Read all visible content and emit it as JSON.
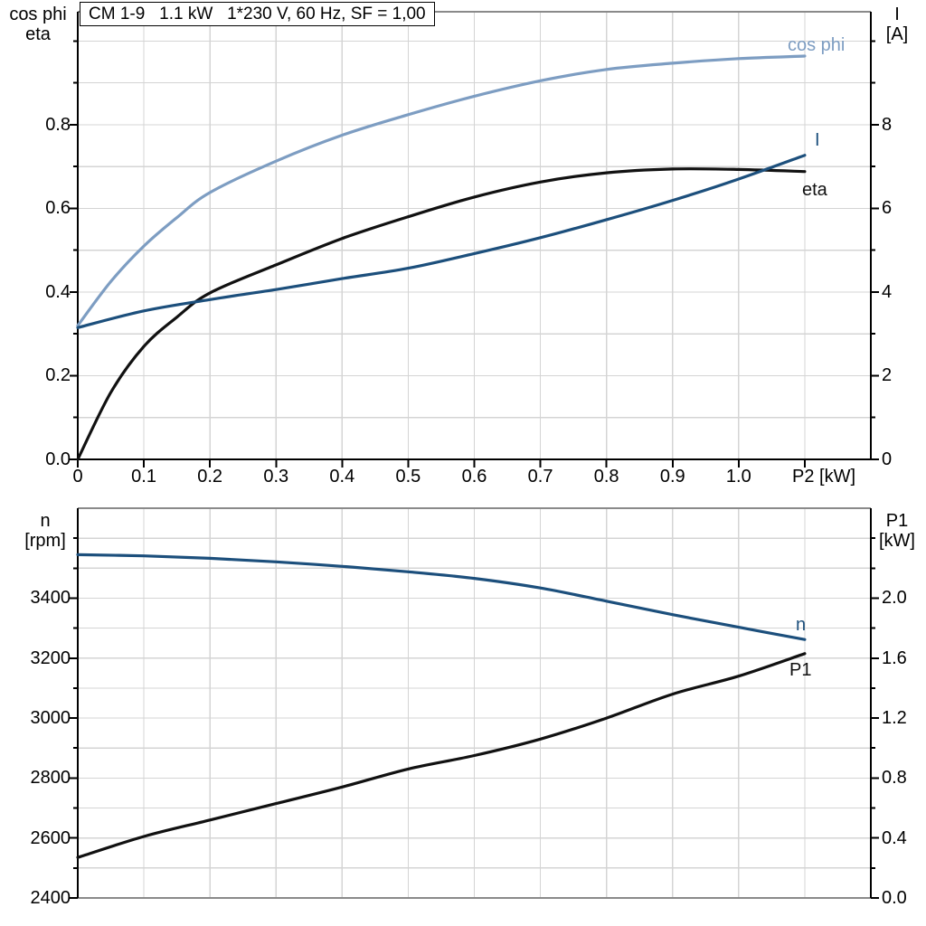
{
  "colors": {
    "cos_phi_light_blue": "#7D9DC2",
    "dark_blue": "#1C4F7C",
    "curve_black": "#111111",
    "grid": "#D4D4D4",
    "frame_gray": "#8A8A8A",
    "axis_black": "#000000",
    "background": "#FFFFFF"
  },
  "chart_data": [
    {
      "type": "line",
      "title": "CM 1-9   1.1 kW   1*230 V, 60 Hz, SF = 1,00",
      "x_axis": {
        "label": "P2 [kW]",
        "min": 0,
        "max": 1.2,
        "tick_step": 0.1,
        "tick_labels": [
          "0",
          "0.1",
          "0.2",
          "0.3",
          "0.4",
          "0.5",
          "0.6",
          "0.7",
          "0.8",
          "0.9",
          "1.0"
        ],
        "grid": true
      },
      "left_axis": {
        "label": [
          "cos phi",
          "eta"
        ],
        "min": 0,
        "max": 1.07,
        "major_step": 0.2,
        "minor_step": 0.1,
        "tick_labels": [
          "0.0",
          "0.2",
          "0.4",
          "0.6",
          "0.8"
        ]
      },
      "right_axis": {
        "label": [
          "I",
          "[A]"
        ],
        "min": 0,
        "max": 10.7,
        "major_step": 2,
        "minor_step": 1,
        "tick_labels": [
          "0",
          "2",
          "4",
          "6",
          "8"
        ]
      },
      "legend_position": "curve-end-labels",
      "series": [
        {
          "name": "cos phi",
          "axis": "left",
          "color": "#7D9DC2",
          "points": [
            [
              0,
              0.32
            ],
            [
              0.05,
              0.425
            ],
            [
              0.1,
              0.51
            ],
            [
              0.15,
              0.578
            ],
            [
              0.2,
              0.638
            ],
            [
              0.3,
              0.713
            ],
            [
              0.4,
              0.775
            ],
            [
              0.5,
              0.824
            ],
            [
              0.6,
              0.868
            ],
            [
              0.7,
              0.905
            ],
            [
              0.8,
              0.932
            ],
            [
              0.9,
              0.947
            ],
            [
              1.0,
              0.958
            ],
            [
              1.1,
              0.964
            ]
          ]
        },
        {
          "name": "eta",
          "axis": "left",
          "color": "#111111",
          "points": [
            [
              0,
              0.0
            ],
            [
              0.05,
              0.16
            ],
            [
              0.1,
              0.27
            ],
            [
              0.15,
              0.34
            ],
            [
              0.2,
              0.398
            ],
            [
              0.3,
              0.465
            ],
            [
              0.4,
              0.528
            ],
            [
              0.5,
              0.58
            ],
            [
              0.6,
              0.627
            ],
            [
              0.7,
              0.663
            ],
            [
              0.8,
              0.685
            ],
            [
              0.9,
              0.694
            ],
            [
              1.0,
              0.693
            ],
            [
              1.1,
              0.688
            ]
          ]
        },
        {
          "name": "I",
          "axis": "right",
          "color": "#1C4F7C",
          "points": [
            [
              0,
              3.15
            ],
            [
              0.1,
              3.55
            ],
            [
              0.2,
              3.82
            ],
            [
              0.3,
              4.06
            ],
            [
              0.4,
              4.32
            ],
            [
              0.5,
              4.57
            ],
            [
              0.6,
              4.92
            ],
            [
              0.7,
              5.3
            ],
            [
              0.8,
              5.73
            ],
            [
              0.9,
              6.19
            ],
            [
              1.0,
              6.7
            ],
            [
              1.1,
              7.27
            ]
          ]
        }
      ]
    },
    {
      "type": "line",
      "title": "",
      "x_axis": {
        "label": "",
        "min": 0,
        "max": 1.2,
        "tick_step": 0.1,
        "tick_labels": [],
        "grid": true
      },
      "left_axis": {
        "label": [
          "n",
          "[rpm]"
        ],
        "min": 2400,
        "max": 3700,
        "major_step": 200,
        "minor_step": 100,
        "tick_labels": [
          "2400",
          "2600",
          "2800",
          "3000",
          "3200",
          "3400"
        ]
      },
      "right_axis": {
        "label": [
          "P1",
          "[kW]"
        ],
        "min": 0,
        "max": 2.6,
        "major_step": 0.4,
        "minor_step": 0.2,
        "tick_labels": [
          "0.0",
          "0.4",
          "0.8",
          "1.2",
          "1.6",
          "2.0"
        ]
      },
      "legend_position": "curve-end-labels",
      "series": [
        {
          "name": "n",
          "axis": "left",
          "color": "#1C4F7C",
          "points": [
            [
              0,
              3545
            ],
            [
              0.1,
              3541
            ],
            [
              0.2,
              3533
            ],
            [
              0.3,
              3521
            ],
            [
              0.4,
              3506
            ],
            [
              0.5,
              3488
            ],
            [
              0.6,
              3466
            ],
            [
              0.7,
              3434
            ],
            [
              0.8,
              3390
            ],
            [
              0.9,
              3345
            ],
            [
              1.0,
              3303
            ],
            [
              1.1,
              3262
            ]
          ]
        },
        {
          "name": "P1",
          "axis": "right",
          "color": "#111111",
          "points": [
            [
              0,
              0.27
            ],
            [
              0.1,
              0.41
            ],
            [
              0.2,
              0.52
            ],
            [
              0.3,
              0.63
            ],
            [
              0.4,
              0.74
            ],
            [
              0.5,
              0.86
            ],
            [
              0.6,
              0.95
            ],
            [
              0.7,
              1.06
            ],
            [
              0.8,
              1.2
            ],
            [
              0.9,
              1.36
            ],
            [
              1.0,
              1.48
            ],
            [
              1.1,
              1.63
            ]
          ]
        }
      ]
    }
  ]
}
